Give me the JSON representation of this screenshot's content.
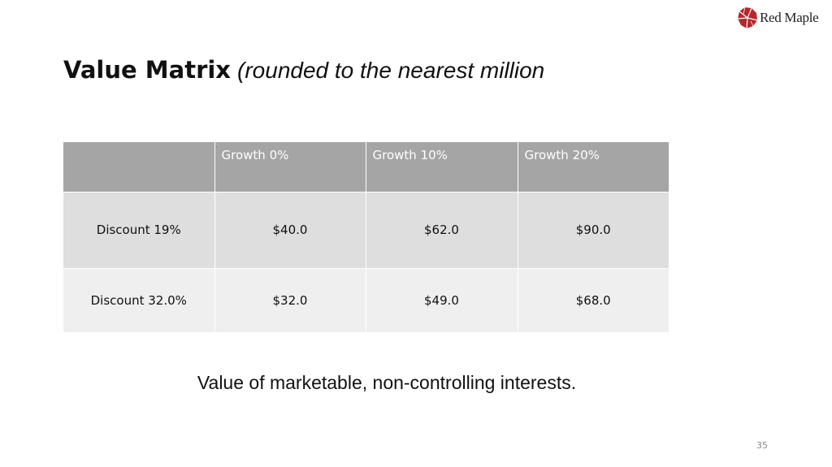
{
  "brand": {
    "name": "Red Maple",
    "logo_icon": "red-maple-leaf-icon",
    "color": "#b5272d"
  },
  "title": {
    "main": "Value Matrix",
    "note": "(rounded to the nearest million"
  },
  "table": {
    "columns": [
      "",
      "Growth 0%",
      "Growth 10%",
      "Growth 20%"
    ],
    "rows": [
      {
        "label": "Discount 19%",
        "values": [
          "$40.0",
          "$62.0",
          "$90.0"
        ]
      },
      {
        "label": "Discount 32.0%",
        "values": [
          "$32.0",
          "$49.0",
          "$68.0"
        ]
      }
    ],
    "colors": {
      "header": "#a5a5a5",
      "row_1": "#dedede",
      "row_2": "#efefef"
    }
  },
  "footnote": "Value of marketable, non-controlling interests.",
  "page_number": "35"
}
